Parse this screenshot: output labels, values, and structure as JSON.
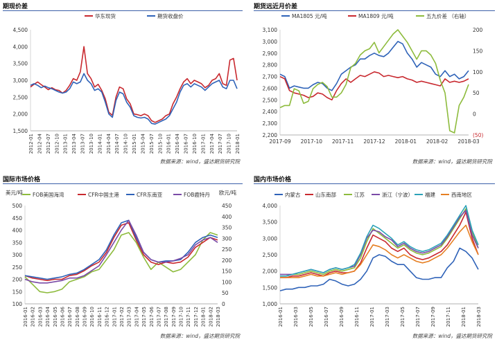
{
  "source_text": "数据来源：wind，盛达期货研究院",
  "chart_data": [
    {
      "type": "line",
      "title": "期现价差",
      "x_labels": [
        "2012-01",
        "2012-04",
        "2012-07",
        "2012-10",
        "2013-01",
        "2013-04",
        "2013-07",
        "2013-10",
        "2014-01",
        "2014-04",
        "2014-07",
        "2014-10",
        "2015-01",
        "2015-04",
        "2015-07",
        "2015-10",
        "2016-01",
        "2016-04",
        "2016-07",
        "2016-10",
        "2017-01",
        "2017-04",
        "2017-07",
        "2017-10",
        "2018-01"
      ],
      "ylim": [
        1500,
        4500
      ],
      "y_ticks": [
        "4,500",
        "4,000",
        "3,500",
        "3,000",
        "2,500",
        "2,000",
        "1,500"
      ],
      "legend_position": "top",
      "series": [
        {
          "name": "华东现货",
          "color": "#c8282e",
          "values": [
            2800,
            2880,
            2950,
            2870,
            2800,
            2720,
            2780,
            2720,
            2700,
            2620,
            2700,
            2850,
            3050,
            3000,
            3250,
            4000,
            3200,
            3050,
            2800,
            2880,
            2700,
            2450,
            2050,
            1960,
            2500,
            2800,
            2750,
            2450,
            2300,
            2000,
            1980,
            1950,
            2000,
            1950,
            1800,
            1750,
            1800,
            1850,
            1950,
            2000,
            2300,
            2500,
            2750,
            2950,
            3050,
            2900,
            3000,
            2950,
            2900,
            2780,
            2850,
            3000,
            3050,
            3200,
            2900,
            2850,
            3600,
            3650,
            3000
          ]
        },
        {
          "name": "期货收盘价",
          "color": "#2e62b8",
          "values": [
            2850,
            2900,
            2850,
            2780,
            2830,
            2780,
            2750,
            2700,
            2650,
            2620,
            2650,
            2750,
            2950,
            2900,
            2950,
            3200,
            3000,
            2900,
            2700,
            2750,
            2650,
            2350,
            2000,
            1900,
            2400,
            2650,
            2600,
            2350,
            2200,
            1950,
            1900,
            1880,
            1900,
            1850,
            1720,
            1700,
            1750,
            1800,
            1850,
            1950,
            2150,
            2350,
            2650,
            2850,
            2900,
            2800,
            2900,
            2850,
            2800,
            2700,
            2800,
            2900,
            2950,
            3000,
            2800,
            2750,
            3000,
            3000,
            2750
          ]
        }
      ]
    },
    {
      "type": "line",
      "title": "期货远近月价差",
      "x_labels": [
        "2017-09",
        "2017-10",
        "2017-11",
        "2017-12",
        "2018-01",
        "2018-02",
        "2018-03"
      ],
      "ylim": [
        2200,
        3100
      ],
      "y_ticks": [
        "3,100",
        "3,000",
        "2,900",
        "2,800",
        "2,700",
        "2,600",
        "2,500",
        "2,400",
        "2,300",
        "2,200"
      ],
      "y2lim": [
        -50,
        200
      ],
      "y2_ticks": [
        "200",
        "150",
        "100",
        "50",
        "0",
        "(50)"
      ],
      "legend_position": "top",
      "series": [
        {
          "name": "MA1805 元/吨",
          "color": "#2e62b8",
          "axis": "left",
          "values": [
            2720,
            2700,
            2600,
            2620,
            2610,
            2600,
            2600,
            2630,
            2650,
            2640,
            2600,
            2580,
            2640,
            2720,
            2750,
            2780,
            2800,
            2850,
            2850,
            2880,
            2900,
            2880,
            2870,
            2900,
            2950,
            3000,
            2980,
            2900,
            2850,
            2780,
            2820,
            2800,
            2780,
            2720,
            2700,
            2750,
            2700,
            2720,
            2680,
            2700,
            2750
          ]
        },
        {
          "name": "MA1809 元/吨",
          "color": "#c8282e",
          "axis": "left",
          "values": [
            2700,
            2680,
            2580,
            2560,
            2550,
            2540,
            2520,
            2530,
            2560,
            2550,
            2520,
            2500,
            2580,
            2640,
            2680,
            2650,
            2680,
            2710,
            2700,
            2720,
            2740,
            2730,
            2700,
            2710,
            2700,
            2690,
            2700,
            2680,
            2670,
            2650,
            2660,
            2650,
            2640,
            2630,
            2620,
            2680,
            2650,
            2660,
            2650,
            2660,
            2680
          ]
        },
        {
          "name": "五九价差 （右轴）",
          "color": "#8dbb3c",
          "axis": "right",
          "values": [
            15,
            20,
            20,
            60,
            55,
            25,
            30,
            60,
            70,
            75,
            65,
            40,
            40,
            50,
            70,
            110,
            120,
            140,
            150,
            155,
            170,
            145,
            160,
            175,
            190,
            200,
            185,
            170,
            150,
            130,
            150,
            150,
            140,
            120,
            80,
            50,
            -40,
            -45,
            20,
            40,
            70
          ]
        }
      ]
    },
    {
      "type": "line",
      "title": "国际市场价格",
      "x_labels": [
        "2016-01",
        "2016-02",
        "2016-03",
        "2016-04",
        "2016-05",
        "2016-06",
        "2016-07",
        "2016-08",
        "2016-09",
        "2016-10",
        "2016-11",
        "2016-12",
        "2017-01",
        "2017-02",
        "2017-03",
        "2017-04",
        "2017-05",
        "2017-06",
        "2017-07",
        "2017-08",
        "2017-09",
        "2017-10",
        "2017-11",
        "2017-12",
        "2018-01",
        "2018-02",
        "2018-03"
      ],
      "ylim": [
        100,
        500
      ],
      "y_ticks": [
        "500",
        "450",
        "400",
        "350",
        "300",
        "250",
        "200",
        "150",
        "100"
      ],
      "y2lim": [
        0,
        450
      ],
      "y2_ticks": [
        "450",
        "400",
        "350",
        "300",
        "250",
        "200",
        "150",
        "100",
        "50",
        "0"
      ],
      "ylabel": "美元/吨",
      "y2label": "欧元/吨",
      "legend_position": "top",
      "series": [
        {
          "name": "FOB美国海湾",
          "color": "#8dbb3c",
          "values": [
            210,
            180,
            150,
            145,
            150,
            160,
            190,
            200,
            210,
            230,
            240,
            280,
            320,
            380,
            390,
            350,
            290,
            240,
            270,
            250,
            230,
            240,
            270,
            300,
            360,
            390,
            380
          ]
        },
        {
          "name": "CFR中国主港",
          "color": "#c8282e",
          "values": [
            215,
            205,
            200,
            195,
            200,
            200,
            215,
            220,
            235,
            255,
            270,
            310,
            370,
            420,
            430,
            360,
            300,
            270,
            260,
            270,
            265,
            270,
            290,
            330,
            350,
            370,
            360
          ]
        },
        {
          "name": "CFR东南亚",
          "color": "#2e62b8",
          "values": [
            215,
            210,
            205,
            200,
            205,
            210,
            220,
            225,
            240,
            260,
            280,
            320,
            380,
            430,
            440,
            370,
            310,
            280,
            270,
            275,
            275,
            280,
            310,
            350,
            370,
            380,
            370
          ]
        },
        {
          "name": "FOB鹿特丹",
          "color": "#7a4aa6",
          "values": [
            200,
            190,
            185,
            185,
            190,
            195,
            205,
            205,
            215,
            235,
            255,
            300,
            350,
            400,
            440,
            380,
            310,
            280,
            270,
            270,
            275,
            285,
            300,
            340,
            360,
            370,
            350
          ]
        }
      ]
    },
    {
      "type": "line",
      "title": "国内市场价格",
      "x_labels": [
        "2016-01",
        "2016-03",
        "2016-05",
        "2016-07",
        "2016-09",
        "2016-11",
        "2017-01",
        "2017-03",
        "2017-05",
        "2017-07",
        "2017-09",
        "2017-11",
        "2018-01",
        "2018-03"
      ],
      "ylim": [
        1000,
        4000
      ],
      "y_ticks": [
        "4,000",
        "3,500",
        "3,000",
        "2,500",
        "2,000",
        "1,500",
        "1,000"
      ],
      "legend_position": "top",
      "series": [
        {
          "name": "内蒙古",
          "color": "#2e62b8",
          "values": [
            1400,
            1450,
            1450,
            1500,
            1500,
            1550,
            1550,
            1600,
            1750,
            1700,
            1600,
            1550,
            1600,
            1750,
            2000,
            2400,
            2500,
            2450,
            2300,
            2200,
            2200,
            2000,
            1800,
            1750,
            1750,
            1800,
            1800,
            2100,
            2300,
            2700,
            2600,
            2400,
            2050
          ]
        },
        {
          "name": "山东南部",
          "color": "#c8282e",
          "values": [
            1800,
            1800,
            1850,
            1850,
            1900,
            1950,
            1900,
            1850,
            1950,
            2000,
            1950,
            1950,
            2000,
            2250,
            2700,
            3100,
            3000,
            2900,
            2700,
            2600,
            2700,
            2500,
            2400,
            2350,
            2400,
            2500,
            2600,
            2800,
            3100,
            3400,
            3800,
            3000,
            2500
          ]
        },
        {
          "name": "江苏",
          "color": "#8dbb3c",
          "values": [
            1850,
            1850,
            1900,
            1900,
            1950,
            2000,
            1950,
            1900,
            2000,
            2050,
            2000,
            2050,
            2100,
            2400,
            2900,
            3300,
            3150,
            3000,
            2850,
            2700,
            2800,
            2650,
            2550,
            2500,
            2550,
            2650,
            2750,
            3000,
            3300,
            3600,
            3900,
            3200,
            2700
          ]
        },
        {
          "name": "浙江（宁波）",
          "color": "#7a4aa6",
          "values": [
            1900,
            1900,
            1900,
            1950,
            2000,
            2050,
            2000,
            1950,
            2050,
            2100,
            2050,
            2100,
            2150,
            2500,
            3000,
            3250,
            3200,
            3050,
            2950,
            2750,
            2850,
            2700,
            2600,
            2550,
            2600,
            2700,
            2800,
            3050,
            3350,
            3650,
            3850,
            3100,
            2700
          ]
        },
        {
          "name": "福建",
          "color": "#2ba2b8",
          "values": [
            1850,
            1850,
            1900,
            1950,
            2000,
            2050,
            2000,
            1950,
            2050,
            2100,
            2050,
            2100,
            2200,
            2550,
            3050,
            3400,
            3300,
            3150,
            3000,
            2800,
            2900,
            2750,
            2650,
            2600,
            2650,
            2750,
            2850,
            3100,
            3400,
            3700,
            4000,
            3250,
            2800
          ]
        },
        {
          "name": "西南地区",
          "color": "#e67f22",
          "values": [
            1800,
            1800,
            1800,
            1800,
            1850,
            1900,
            1850,
            1850,
            1900,
            1950,
            1900,
            1950,
            2000,
            2200,
            2500,
            2800,
            2750,
            2650,
            2500,
            2400,
            2500,
            2400,
            2300,
            2250,
            2300,
            2400,
            2500,
            2700,
            2950,
            3200,
            3400,
            2900,
            2500
          ]
        }
      ]
    }
  ]
}
